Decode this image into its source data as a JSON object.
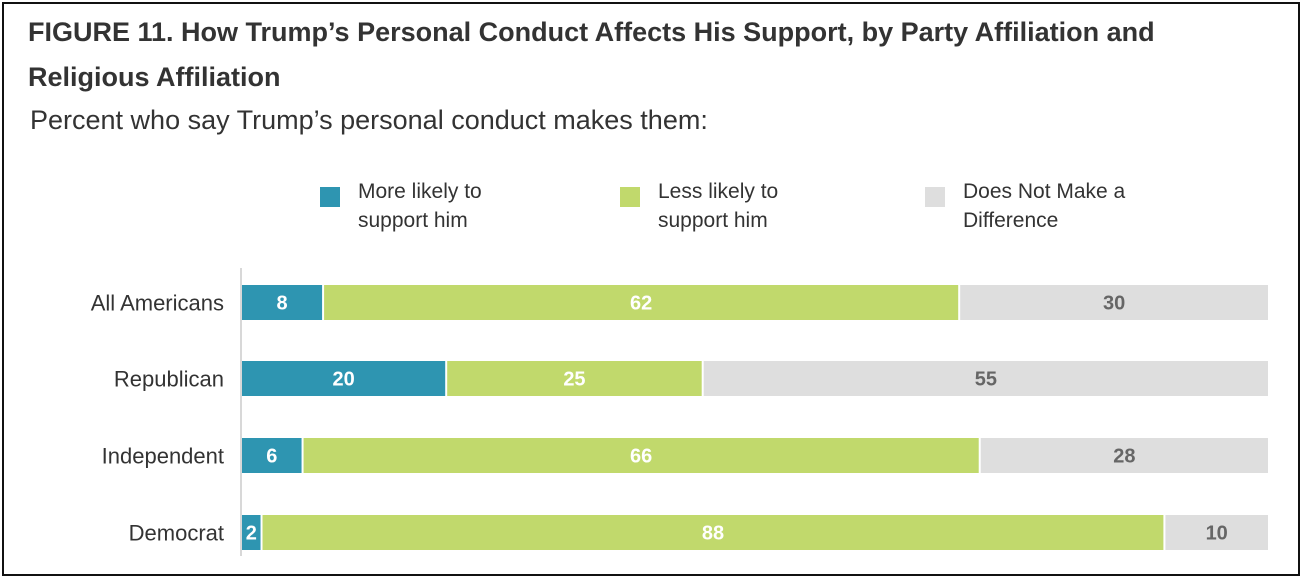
{
  "title": "FIGURE 11.  How Trump’s Personal Conduct Affects His Support, by Party Affiliation and Religious Affiliation",
  "subtitle": "Percent who say Trump’s personal conduct makes them:",
  "legend": [
    {
      "lines": [
        "More likely to",
        "support him"
      ],
      "color": "#2e95b1"
    },
    {
      "lines": [
        "Less likely to",
        "support him"
      ],
      "color": "#c1d96c"
    },
    {
      "lines": [
        "Does Not Make a",
        "Difference"
      ],
      "color": "#dedede"
    }
  ],
  "chart_data": {
    "type": "bar",
    "orientation": "horizontal",
    "stacked": true,
    "categories": [
      "All Americans",
      "Republican",
      "Independent",
      "Democrat"
    ],
    "series": [
      {
        "name": "More likely to support him",
        "values": [
          8,
          20,
          6,
          2
        ],
        "color": "#2e95b1",
        "label_color": "#ffffff"
      },
      {
        "name": "Less likely to support him",
        "values": [
          62,
          25,
          66,
          88
        ],
        "color": "#c1d96c",
        "label_color": "#ffffff"
      },
      {
        "name": "Does Not Make a Difference",
        "values": [
          30,
          55,
          28,
          10
        ],
        "color": "#dedede",
        "label_color": "#666666"
      }
    ],
    "xlim": [
      0,
      100
    ],
    "grid": false,
    "legend_position": "top"
  }
}
